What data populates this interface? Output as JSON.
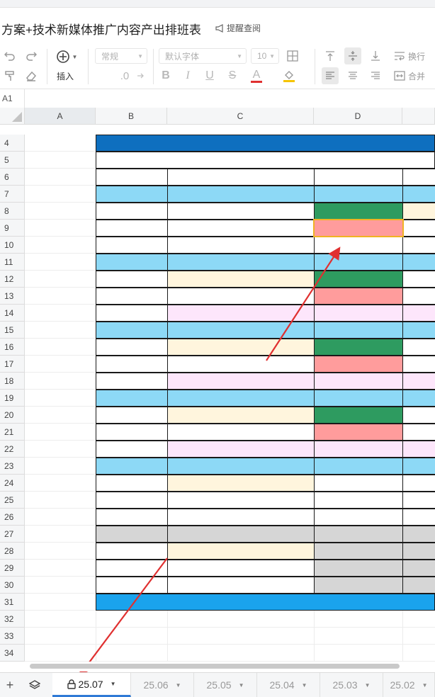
{
  "document": {
    "title": "方案+技术新媒体推广内容产出排班表",
    "remind_label": "提醒查阅"
  },
  "toolbar": {
    "undo_icon": "undo-icon",
    "redo_icon": "redo-icon",
    "format_painter_icon": "format-painter-icon",
    "eraser_icon": "eraser-icon",
    "insert_label": "插入",
    "number_format": "常规",
    "decimal_label": ".0",
    "font_family": "默认字体",
    "font_size": "10",
    "wrap_label": "换行",
    "merge_label": "合并"
  },
  "name_box": "A1",
  "columns": [
    {
      "label": "A",
      "active": true
    },
    {
      "label": "B",
      "active": false
    },
    {
      "label": "C",
      "active": false
    },
    {
      "label": "D",
      "active": false
    },
    {
      "label": "",
      "active": false
    }
  ],
  "rows": [
    "4",
    "5",
    "6",
    "7",
    "8",
    "9",
    "10",
    "11",
    "12",
    "13",
    "14",
    "15",
    "16",
    "17",
    "18",
    "19",
    "20",
    "21",
    "22",
    "23",
    "24",
    "25",
    "26",
    "27",
    "28",
    "29",
    "30",
    "31",
    "32",
    "33",
    "34"
  ],
  "colors": {
    "header_blue": "#0e6fbf",
    "footer_blue": "#1aa3ed",
    "light_blue": "#8dd9f6",
    "dark_green": "#2e9b60",
    "pink": "#ff9c9c",
    "cream": "#fff5dd",
    "lavender": "#fde6fb",
    "gray": "#d6d6d6",
    "selection": "#f0b323",
    "arrow": "#e03030",
    "tab_active": "#2f7ad6"
  },
  "sheet_tabs": [
    {
      "label": "25.07",
      "active": true,
      "locked": true
    },
    {
      "label": "25.06",
      "active": false
    },
    {
      "label": "25.05",
      "active": false
    },
    {
      "label": "25.04",
      "active": false
    },
    {
      "label": "25.03",
      "active": false
    },
    {
      "label": "25.02",
      "active": false
    }
  ]
}
